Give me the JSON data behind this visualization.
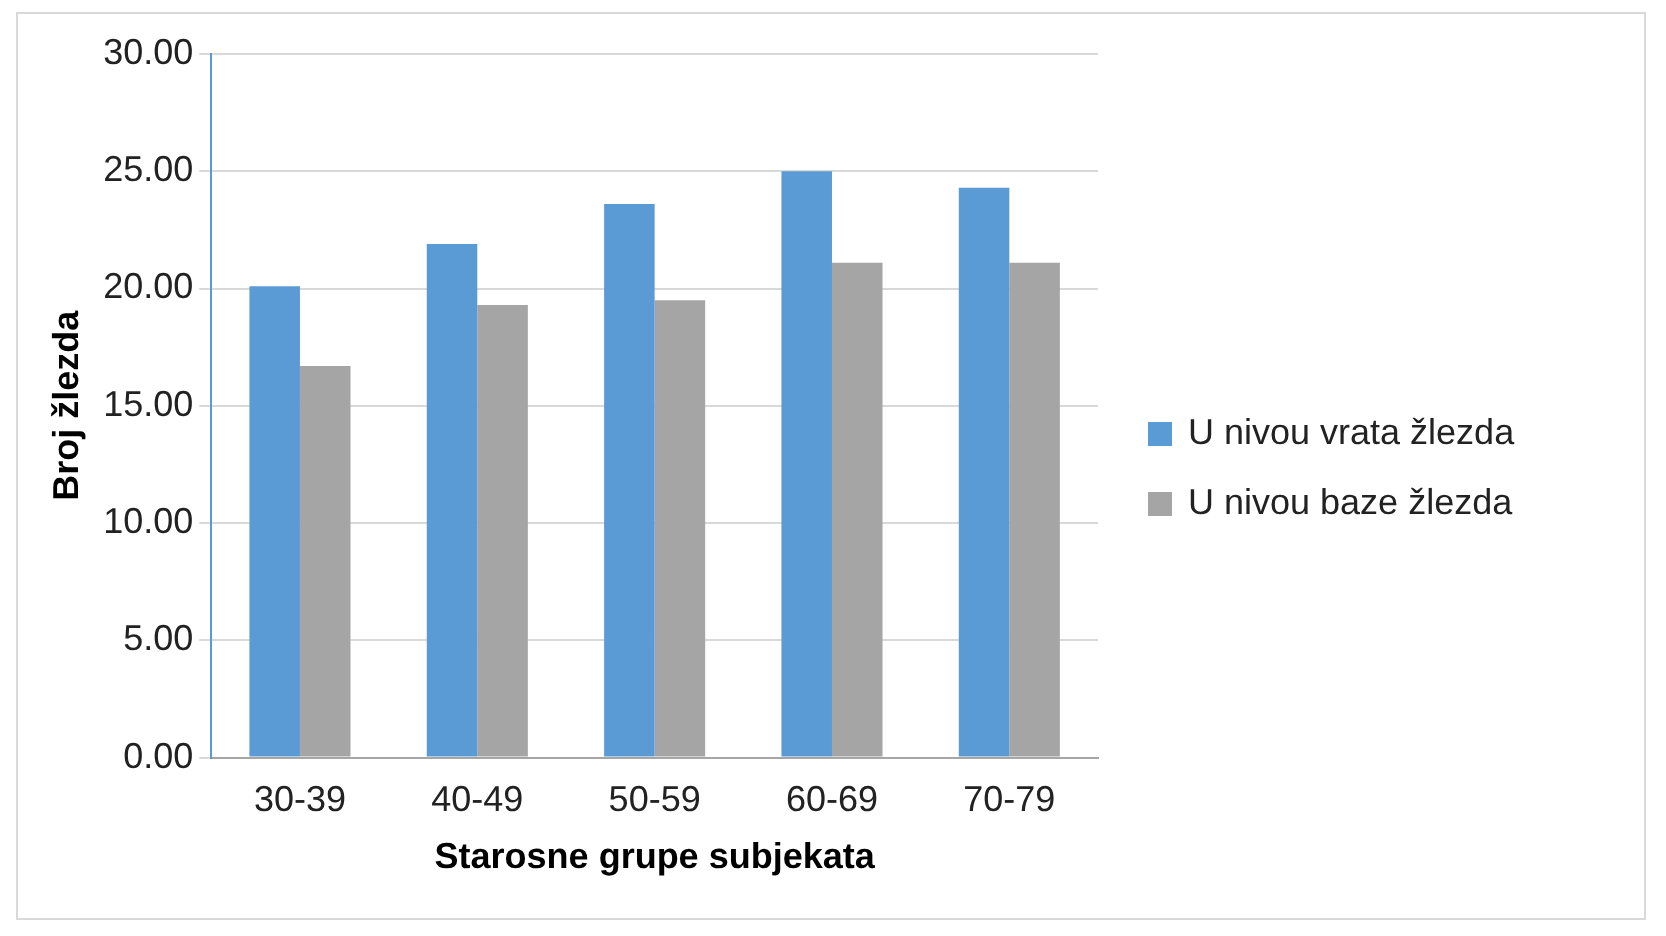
{
  "chart_data": {
    "type": "bar",
    "xlabel": "Starosne grupe subjekata",
    "ylabel": "Broj žlezda",
    "categories": [
      "30-39",
      "40-49",
      "50-59",
      "60-69",
      "70-79"
    ],
    "series": [
      {
        "name": "U nivou vrata žlezda",
        "color": "#5b9bd5",
        "values": [
          20.1,
          21.9,
          23.6,
          25.0,
          24.3
        ]
      },
      {
        "name": "U nivou baze žlezda",
        "color": "#a5a5a5",
        "values": [
          16.7,
          19.3,
          19.5,
          21.1,
          21.1
        ]
      }
    ],
    "ylim": [
      0,
      30
    ],
    "yticks": [
      {
        "value": 0,
        "label": "0.00"
      },
      {
        "value": 5,
        "label": "5.00"
      },
      {
        "value": 10,
        "label": "10.00"
      },
      {
        "value": 15,
        "label": "15.00"
      },
      {
        "value": 20,
        "label": "20.00"
      },
      {
        "value": 25,
        "label": "25.00"
      },
      {
        "value": 30,
        "label": "30.00"
      }
    ],
    "grid": "y",
    "legend": "right"
  }
}
